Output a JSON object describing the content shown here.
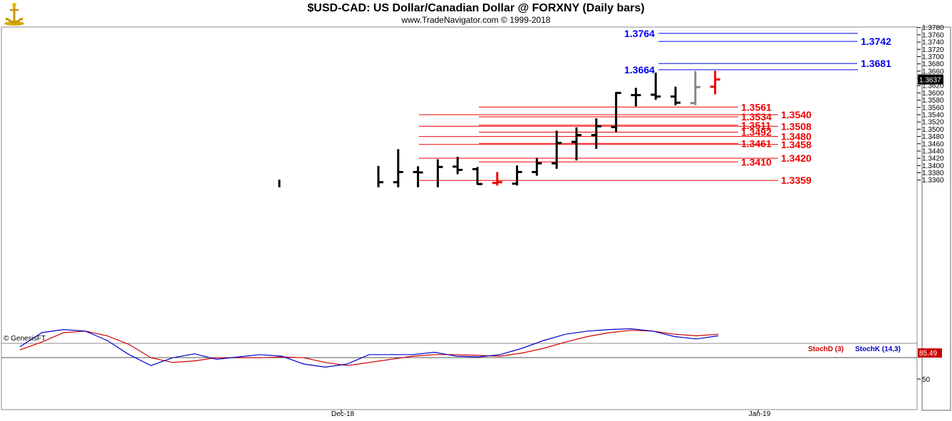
{
  "header": {
    "title": "$USD-CAD:  US Dollar/Canadian Dollar @ FORXNY  (Daily bars)",
    "subtitle": "www.TradeNavigator.com © 1999-2018"
  },
  "watermark": "© GenesisFT",
  "colors": {
    "bar": "#000000",
    "bar_gray": "#888888",
    "bar_red": "#ee0000",
    "support": "#ee0000",
    "resistance": "#0000ee",
    "stochD": "#cc0000",
    "stochK": "#0000cc"
  },
  "chart_data": {
    "type": "ohlc",
    "title": "$USD-CAD:  US Dollar/Canadian Dollar @ FORXNY  (Daily bars)",
    "y_axis": {
      "ticks": [
        "1.3780",
        "1.3760",
        "1.3740",
        "1.3720",
        "1.3700",
        "1.3680",
        "1.3660",
        "1.3640",
        "1.3620",
        "1.3600",
        "1.3580",
        "1.3560",
        "1.3540",
        "1.3520",
        "1.3500",
        "1.3480",
        "1.3460",
        "1.3440",
        "1.3420",
        "1.3400",
        "1.3380",
        "1.3360"
      ],
      "range": [
        1.334,
        1.3795
      ],
      "last_price": "1.3637"
    },
    "x_axis": {
      "labels": [
        "Dec-18",
        "Jan-19"
      ]
    },
    "bars": [
      {
        "h": 1.3361,
        "l": 1.334,
        "o": null,
        "c": null,
        "color": "black"
      },
      {
        "h": 1.3399,
        "l": 1.334,
        "o": null,
        "c": 1.3354,
        "color": "black"
      },
      {
        "h": 1.3445,
        "l": 1.334,
        "o": 1.3354,
        "c": 1.3382,
        "color": "black"
      },
      {
        "h": 1.3398,
        "l": 1.334,
        "o": 1.3382,
        "c": 1.3381,
        "color": "black"
      },
      {
        "h": 1.3417,
        "l": 1.334,
        "o": null,
        "c": 1.3396,
        "color": "black"
      },
      {
        "h": 1.3424,
        "l": 1.3376,
        "o": 1.3397,
        "c": 1.3388,
        "color": "black"
      },
      {
        "h": 1.3396,
        "l": 1.3347,
        "o": 1.339,
        "c": 1.3349,
        "color": "black"
      },
      {
        "h": 1.3382,
        "l": 1.3345,
        "o": 1.3352,
        "c": 1.3354,
        "color": "red"
      },
      {
        "h": 1.34,
        "l": 1.3345,
        "o": 1.335,
        "c": 1.3382,
        "color": "black"
      },
      {
        "h": 1.3421,
        "l": 1.3372,
        "o": 1.3382,
        "c": 1.3406,
        "color": "black"
      },
      {
        "h": 1.3496,
        "l": 1.3391,
        "o": 1.3406,
        "c": 1.3462,
        "color": "black"
      },
      {
        "h": 1.3505,
        "l": 1.3414,
        "o": 1.3465,
        "c": 1.3484,
        "color": "black"
      },
      {
        "h": 1.353,
        "l": 1.3446,
        "o": 1.3484,
        "c": 1.3508,
        "color": "black"
      },
      {
        "h": 1.3602,
        "l": 1.3492,
        "o": 1.3506,
        "c": 1.36,
        "color": "black"
      },
      {
        "h": 1.3614,
        "l": 1.3563,
        "o": 1.3594,
        "c": 1.3594,
        "color": "black"
      },
      {
        "h": 1.3656,
        "l": 1.3581,
        "o": 1.3595,
        "c": 1.359,
        "color": "black"
      },
      {
        "h": 1.3617,
        "l": 1.3566,
        "o": 1.359,
        "c": 1.3573,
        "color": "black"
      },
      {
        "h": 1.366,
        "l": 1.3566,
        "o": 1.3572,
        "c": 1.3616,
        "color": "gray"
      },
      {
        "h": 1.3661,
        "l": 1.3596,
        "o": 1.3617,
        "c": 1.3637,
        "color": "red"
      }
    ],
    "support_levels": [
      {
        "value": 1.3561,
        "label": "1.3561",
        "label_side": "inner"
      },
      {
        "value": 1.354,
        "label": "1.3540",
        "label_side": "outer"
      },
      {
        "value": 1.3534,
        "label": "1.3534",
        "label_side": "inner"
      },
      {
        "value": 1.3511,
        "label": "1.3511",
        "label_side": "inner"
      },
      {
        "value": 1.3508,
        "label": "1.3508",
        "label_side": "outer"
      },
      {
        "value": 1.3492,
        "label": "1.3492",
        "label_side": "inner"
      },
      {
        "value": 1.348,
        "label": "1.3480",
        "label_side": "outer"
      },
      {
        "value": 1.3461,
        "label": "1.3461",
        "label_side": "inner"
      },
      {
        "value": 1.3458,
        "label": "1.3458",
        "label_side": "outer"
      },
      {
        "value": 1.342,
        "label": "1.3420",
        "label_side": "outer"
      },
      {
        "value": 1.341,
        "label": "1.3410",
        "label_side": "inner"
      },
      {
        "value": 1.3359,
        "label": "1.3359",
        "label_side": "outer"
      }
    ],
    "resistance_levels": [
      {
        "value": 1.3764,
        "label": "1.3764",
        "label_side": "left"
      },
      {
        "value": 1.3742,
        "label": "1.3742",
        "label_side": "right"
      },
      {
        "value": 1.3681,
        "label": "1.3681",
        "label_side": "right"
      },
      {
        "value": 1.3664,
        "label": "1.3664",
        "label_side": "left"
      }
    ],
    "indicator": {
      "stochD_label": "StochD (3)",
      "stochK_label": "StochK (14,3)",
      "last_value": "85.49",
      "y_tick": "50",
      "y_range": [
        0,
        100
      ],
      "stochK": [
        62,
        80,
        84,
        82,
        70,
        52,
        38,
        48,
        53,
        46,
        49,
        52,
        50,
        40,
        36,
        40,
        52,
        52,
        52,
        55,
        50,
        49,
        52,
        60,
        70,
        78,
        82,
        84,
        85,
        82,
        75,
        72,
        76
      ],
      "stochD": [
        58,
        68,
        80,
        82,
        76,
        65,
        48,
        42,
        44,
        48,
        48,
        48,
        49,
        48,
        42,
        38,
        42,
        46,
        50,
        52,
        52,
        51,
        50,
        54,
        60,
        68,
        75,
        80,
        83,
        82,
        78,
        76,
        78
      ]
    }
  }
}
